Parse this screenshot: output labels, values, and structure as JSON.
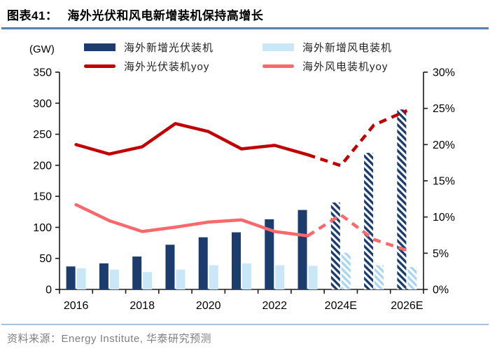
{
  "header": {
    "label": "图表41：",
    "title": "海外光伏和风电新增装机保持高增长"
  },
  "axis_unit_label": "(GW)",
  "legend": {
    "items": [
      {
        "label": "海外新增光伏装机",
        "swatch": "bar-navy"
      },
      {
        "label": "海外光伏装机yoy",
        "swatch": "line-red"
      },
      {
        "label": "海外新增风电装机",
        "swatch": "bar-lightblue"
      },
      {
        "label": "海外风电装机yoy",
        "swatch": "line-pink"
      }
    ]
  },
  "colors": {
    "navy": "#1B3C6D",
    "lightblue": "#C9E7F6",
    "lightblue_hatch": "#A9D6EF",
    "red": "#C00000",
    "pink": "#F8696B",
    "axis": "#1a1a1a",
    "text": "#000000"
  },
  "chart_data": {
    "type": "bar",
    "subtype": "combo-bar-line-dual-axis",
    "categories": [
      "2016",
      "2017",
      "2018",
      "2019",
      "2020",
      "2021",
      "2022",
      "2023",
      "2024E",
      "2025E",
      "2026E"
    ],
    "x_tick_labels": [
      "2016",
      "2018",
      "2020",
      "2022",
      "2024E",
      "2026E"
    ],
    "x_tick_label_indices": [
      0,
      2,
      4,
      6,
      8,
      10
    ],
    "left_axis": {
      "label": "(GW)",
      "min": 0,
      "max": 350,
      "step": 50,
      "tick_labels": [
        "0",
        "50",
        "100",
        "150",
        "200",
        "250",
        "300",
        "350"
      ]
    },
    "right_axis": {
      "min": 0,
      "max": 30,
      "step": 5,
      "tick_labels": [
        "0%",
        "5%",
        "10%",
        "15%",
        "20%",
        "25%",
        "30%"
      ]
    },
    "grid": false,
    "legend_position": "top",
    "forecast_from_index": 8,
    "dashed_from_index": 7,
    "series": [
      {
        "name": "海外新增光伏装机",
        "type": "bar",
        "axis": "left",
        "color_key": "navy",
        "values": [
          37,
          42,
          53,
          72,
          84,
          92,
          113,
          128,
          140,
          220,
          290
        ]
      },
      {
        "name": "海外新增风电装机",
        "type": "bar",
        "axis": "left",
        "color_key": "lightblue",
        "values": [
          34,
          32,
          28,
          32,
          39,
          42,
          39,
          38,
          59,
          39,
          36
        ]
      },
      {
        "name": "海外光伏装机yoy",
        "type": "line",
        "axis": "right",
        "unit": "%",
        "color_key": "red",
        "values": [
          20.0,
          18.7,
          19.7,
          22.9,
          21.8,
          19.4,
          19.9,
          18.6,
          17.1,
          22.7,
          24.7
        ]
      },
      {
        "name": "海外风电装机yoy",
        "type": "line",
        "axis": "right",
        "unit": "%",
        "color_key": "pink",
        "values": [
          11.7,
          9.5,
          8.0,
          8.6,
          9.3,
          9.6,
          8.0,
          7.4,
          10.3,
          6.9,
          5.4
        ]
      }
    ]
  },
  "footer": {
    "source": "资料来源：Energy Institute, 华泰研究预测"
  }
}
